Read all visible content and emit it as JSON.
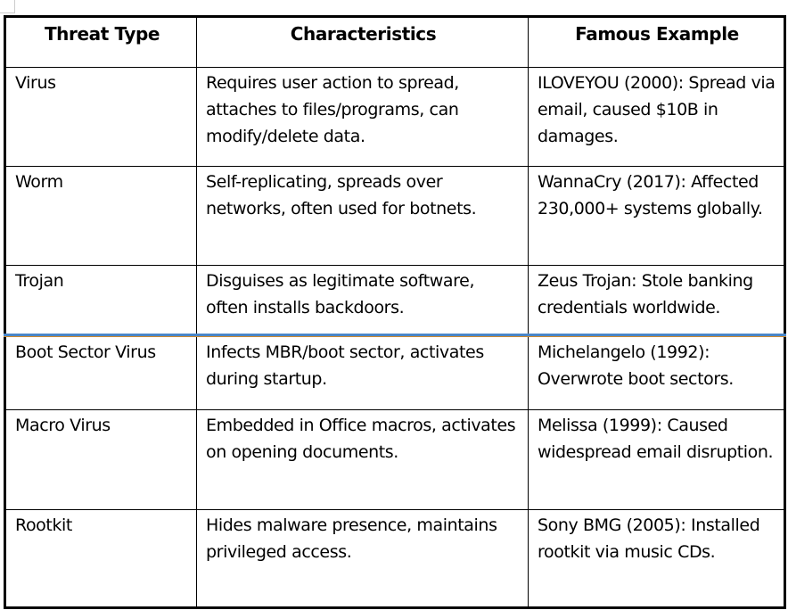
{
  "table": {
    "headers": [
      "Threat Type",
      "Characteristics",
      "Famous Example"
    ],
    "rows": [
      [
        "Virus",
        "Requires user action to spread, attaches to files/programs, can modify/delete data.",
        "ILOVEYOU (2000): Spread via email, caused $10B in damages."
      ],
      [
        "Worm",
        "Self-replicating, spreads over networks, often used for botnets.",
        "WannaCry (2017): Affected 230,000+ systems globally."
      ],
      [
        "Trojan",
        "Disguises as legitimate software, often installs backdoors.",
        "Zeus Trojan: Stole banking credentials worldwide."
      ],
      [
        "Boot Sector Virus",
        "Infects MBR/boot sector, activates during startup.",
        "Michelangelo (1992): Overwrote boot sectors."
      ],
      [
        "Macro Virus",
        "Embedded in Office macros, activates on opening documents.",
        "Melissa (1999): Caused widespread email disruption."
      ],
      [
        "Rootkit",
        "Hides malware presence, maintains privileged access.",
        "Sony BMG (2005): Installed rootkit via music CDs."
      ]
    ]
  },
  "colors": {
    "selection_line": "#4a86c8",
    "selection_underline": "#d08a2c"
  }
}
